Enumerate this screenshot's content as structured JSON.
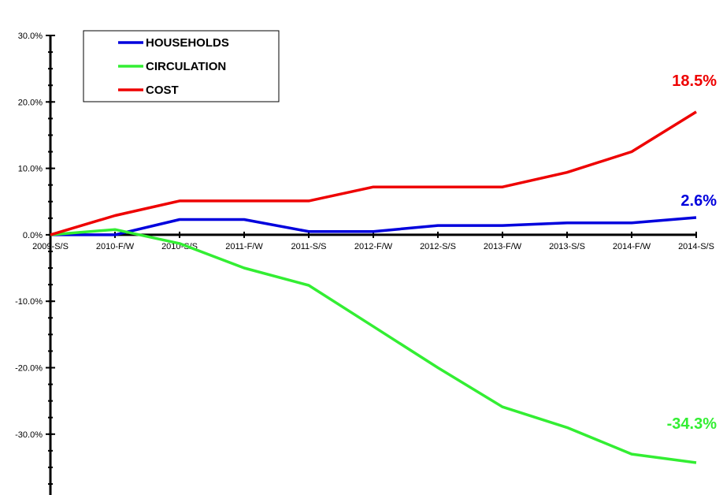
{
  "chart_data": {
    "type": "line",
    "categories": [
      "2009-S/S",
      "2010-F/W",
      "2010-S/S",
      "2011-F/W",
      "2011-S/S",
      "2012-F/W",
      "2012-S/S",
      "2013-F/W",
      "2013-S/S",
      "2014-F/W",
      "2014-S/S"
    ],
    "series": [
      {
        "name": "HOUSEHOLDS",
        "color": "#0000dd",
        "values": [
          0.0,
          0.0,
          2.3,
          2.3,
          0.5,
          0.5,
          1.4,
          1.4,
          1.8,
          1.8,
          2.6
        ]
      },
      {
        "name": "CIRCULATION",
        "color": "#33ee33",
        "values": [
          0.0,
          0.8,
          -1.3,
          -5.0,
          -7.6,
          -13.8,
          -20.0,
          -25.9,
          -29.0,
          -33.0,
          -34.3
        ]
      },
      {
        "name": "COST",
        "color": "#ee0000",
        "values": [
          0.0,
          2.9,
          5.1,
          5.1,
          5.1,
          7.2,
          7.2,
          7.2,
          9.4,
          12.5,
          18.5
        ]
      }
    ],
    "end_labels": [
      {
        "series": "COST",
        "text": "18.5%"
      },
      {
        "series": "HOUSEHOLDS",
        "text": "2.6%"
      },
      {
        "series": "CIRCULATION",
        "text": "-34.3%"
      }
    ],
    "yticks": [
      30,
      20,
      10,
      0,
      -10,
      -20,
      -30
    ],
    "ytick_labels": [
      "30.0%",
      "20.0%",
      "10.0%",
      "0.0%",
      "-10.0%",
      "-20.0%",
      "-30.0%"
    ],
    "ylim": [
      -39,
      30
    ],
    "grid": false,
    "legend_position": "top-left"
  }
}
